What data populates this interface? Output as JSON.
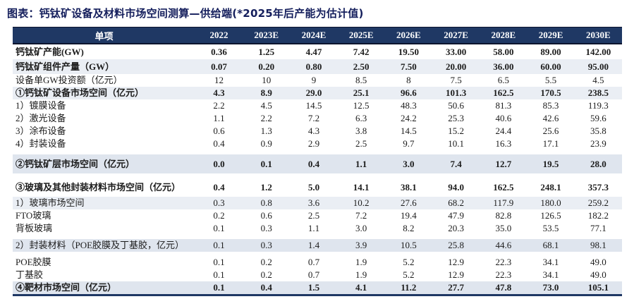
{
  "title": "图表：钙钛矿设备及材料市场空间测算—供给端(*2025年后产能为估计值)",
  "colors": {
    "header_bg": "#1f3864",
    "title_text": "#141e5c",
    "row_shade_light": "#eaeef4",
    "row_shade_mid": "#dfe5ee",
    "bottom_border": "#1f3864"
  },
  "chart_data": {
    "type": "table",
    "title": "钙钛矿设备及材料市场空间测算—供给端(*2025年后产能为估计值)",
    "columns": [
      "单项",
      "2022",
      "2023E",
      "2024E",
      "2025E",
      "2026E",
      "2027E",
      "2028E",
      "2029E",
      "2030E"
    ],
    "rows": [
      {
        "label": "钙钛矿产能(GW)",
        "values": [
          "0.36",
          "1.25",
          "4.47",
          "7.42",
          "19.50",
          "33.00",
          "58.00",
          "89.00",
          "142.00"
        ],
        "bold": true,
        "shade": "none",
        "first": true
      },
      {
        "label": "钙钛矿组件产量（GW）",
        "values": [
          "0.07",
          "0.20",
          "0.80",
          "2.50",
          "7.50",
          "20.00",
          "36.00",
          "60.00",
          "95.00"
        ],
        "bold": true,
        "shade": "light",
        "first": true
      },
      {
        "label": "设备单GW投资额（亿元）",
        "values": [
          "12",
          "10",
          "9",
          "8.5",
          "8",
          "7.5",
          "6.5",
          "5.5",
          "4.5"
        ],
        "bold": false,
        "shade": "none"
      },
      {
        "label": "①钙钛矿设备市场空间（亿元）",
        "values": [
          "4.3",
          "8.9",
          "29.0",
          "25.1",
          "96.6",
          "101.3",
          "162.5",
          "170.5",
          "238.5"
        ],
        "bold": true,
        "shade": "light"
      },
      {
        "label": "1）镀膜设备",
        "values": [
          "2.2",
          "4.5",
          "14.5",
          "12.5",
          "48.3",
          "50.6",
          "81.3",
          "85.3",
          "119.3"
        ],
        "bold": false,
        "shade": "none"
      },
      {
        "label": "2）激光设备",
        "values": [
          "1.1",
          "2.2",
          "7.2",
          "6.3",
          "24.2",
          "25.3",
          "40.6",
          "42.6",
          "59.6"
        ],
        "bold": false,
        "shade": "none"
      },
      {
        "label": "3）涂布设备",
        "values": [
          "0.6",
          "1.3",
          "4.3",
          "3.8",
          "14.5",
          "15.2",
          "24.4",
          "25.6",
          "35.8"
        ],
        "bold": false,
        "shade": "none"
      },
      {
        "label": "4）封装设备",
        "values": [
          "0.4",
          "0.9",
          "2.9",
          "2.5",
          "9.7",
          "10.1",
          "16.3",
          "17.1",
          "23.9"
        ],
        "bold": false,
        "shade": "none"
      },
      {
        "spacer": true
      },
      {
        "label": "②钙钛矿层市场空间（亿元）",
        "values": [
          "0.0",
          "0.1",
          "0.4",
          "1.1",
          "3.0",
          "7.4",
          "12.7",
          "19.5",
          "28.0"
        ],
        "bold": true,
        "shade": "mid",
        "tall": true
      },
      {
        "spacer": true
      },
      {
        "label": "③玻璃及其他封装材料市场空间（亿元）",
        "values": [
          "0.4",
          "1.2",
          "5.0",
          "14.1",
          "38.1",
          "94.0",
          "162.5",
          "248.1",
          "357.3"
        ],
        "bold": true,
        "shade": "none",
        "tall": true
      },
      {
        "label": "1）玻璃市场空间",
        "values": [
          "0.3",
          "0.8",
          "3.6",
          "10.2",
          "27.6",
          "68.2",
          "117.9",
          "180.0",
          "259.2"
        ],
        "bold": false,
        "shade": "light"
      },
      {
        "label": "FTO玻璃",
        "values": [
          "0.2",
          "0.6",
          "2.5",
          "7.2",
          "19.4",
          "47.9",
          "82.8",
          "126.5",
          "182.2"
        ],
        "bold": false,
        "shade": "none",
        "indent": true
      },
      {
        "label": "背板玻璃",
        "values": [
          "0.1",
          "0.3",
          "1.1",
          "3.0",
          "8.2",
          "20.3",
          "35.0",
          "53.5",
          "77.1"
        ],
        "bold": false,
        "shade": "none",
        "indent": true
      },
      {
        "spacer": true
      },
      {
        "label": "2）封装材料（POE胶膜及丁基胶，亿元）",
        "values": [
          "0.1",
          "0.3",
          "1.4",
          "3.9",
          "10.5",
          "25.8",
          "44.6",
          "68.1",
          "98.1"
        ],
        "bold": false,
        "shade": "mid"
      },
      {
        "spacer": true
      },
      {
        "label": "POE胶膜",
        "values": [
          "0.1",
          "0.2",
          "0.7",
          "1.9",
          "5.2",
          "12.9",
          "22.3",
          "34.1",
          "49.0"
        ],
        "bold": false,
        "shade": "none",
        "indent": true
      },
      {
        "label": "丁基胶",
        "values": [
          "0.1",
          "0.2",
          "0.7",
          "1.9",
          "5.2",
          "12.9",
          "22.3",
          "34.1",
          "49.0"
        ],
        "bold": false,
        "shade": "none",
        "indent": true
      },
      {
        "label": "④靶材市场空间（亿元）",
        "values": [
          "0.1",
          "0.4",
          "1.5",
          "4.1",
          "11.2",
          "27.7",
          "47.8",
          "73.0",
          "105.1"
        ],
        "bold": true,
        "shade": "mid"
      }
    ]
  }
}
